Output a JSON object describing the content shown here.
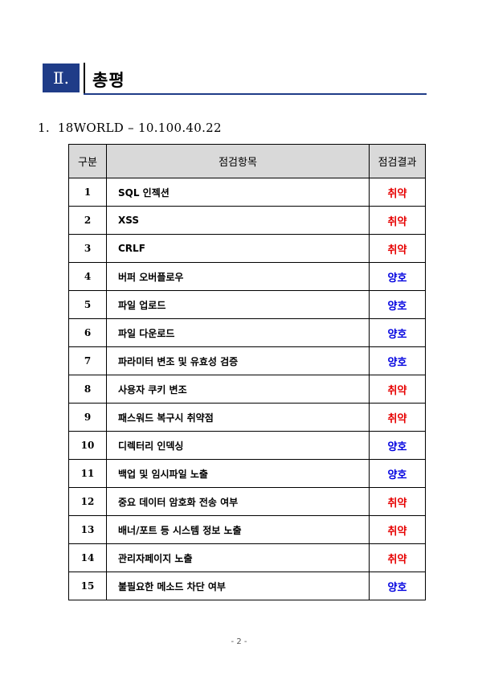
{
  "section": {
    "number": "Ⅱ.",
    "title": "총평"
  },
  "subheading": {
    "index": "1.",
    "text": "18WORLD – 10.100.40.22"
  },
  "table": {
    "headers": {
      "no": "구분",
      "item": "점검항목",
      "result": "점검결과"
    },
    "rows": [
      {
        "no": "1",
        "item": "SQL 인젝션",
        "result": "취약",
        "status": "vuln"
      },
      {
        "no": "2",
        "item": "XSS",
        "result": "취약",
        "status": "vuln"
      },
      {
        "no": "3",
        "item": "CRLF",
        "result": "취약",
        "status": "vuln"
      },
      {
        "no": "4",
        "item": "버퍼 오버플로우",
        "result": "양호",
        "status": "good"
      },
      {
        "no": "5",
        "item": "파일 업로드",
        "result": "양호",
        "status": "good"
      },
      {
        "no": "6",
        "item": "파일 다운로드",
        "result": "양호",
        "status": "good"
      },
      {
        "no": "7",
        "item": "파라미터 변조 및 유효성 검증",
        "result": "양호",
        "status": "good"
      },
      {
        "no": "8",
        "item": "사용자 쿠키 변조",
        "result": "취약",
        "status": "vuln"
      },
      {
        "no": "9",
        "item": "패스워드 복구시 취약점",
        "result": "취약",
        "status": "vuln"
      },
      {
        "no": "10",
        "item": "디렉터리 인덱싱",
        "result": "양호",
        "status": "good"
      },
      {
        "no": "11",
        "item": "백업 및 임시파일 노출",
        "result": "양호",
        "status": "good"
      },
      {
        "no": "12",
        "item": "중요 데이터 암호화 전송 여부",
        "result": "취약",
        "status": "vuln"
      },
      {
        "no": "13",
        "item": "배너/포트 등 시스템 정보 노출",
        "result": "취약",
        "status": "vuln"
      },
      {
        "no": "14",
        "item": "관리자페이지 노출",
        "result": "취약",
        "status": "vuln"
      },
      {
        "no": "15",
        "item": "불필요한 메소드 차단 여부",
        "result": "양호",
        "status": "good"
      }
    ]
  },
  "colors": {
    "vuln": "#e60000",
    "good": "#0000e0",
    "header_box": "#1f3c88"
  },
  "page": {
    "number": "- 2 -"
  }
}
